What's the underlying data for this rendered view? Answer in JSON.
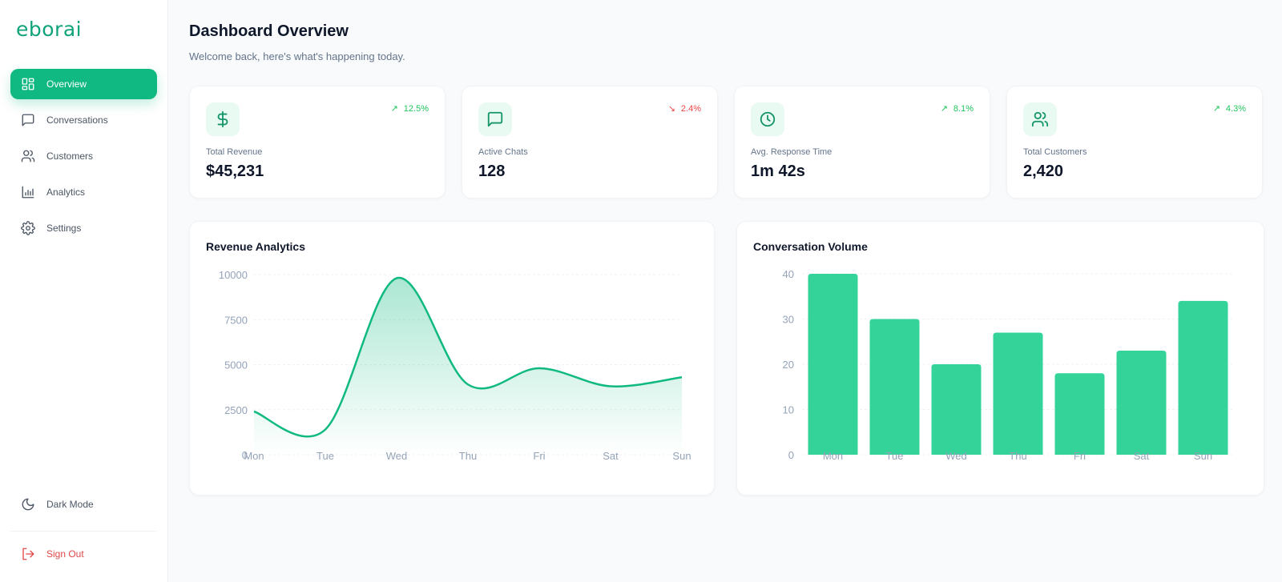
{
  "sidebar": {
    "logo": "eborai",
    "items": [
      {
        "label": "Overview",
        "icon": "grid-icon",
        "active": true
      },
      {
        "label": "Conversations",
        "icon": "message-square-icon",
        "active": false
      },
      {
        "label": "Customers",
        "icon": "users-icon",
        "active": false
      },
      {
        "label": "Analytics",
        "icon": "bar-chart-icon",
        "active": false
      },
      {
        "label": "Settings",
        "icon": "gear-icon",
        "active": false
      }
    ],
    "dark_mode": {
      "label": "Dark Mode",
      "icon": "moon-icon"
    },
    "sign_out": {
      "label": "Sign Out",
      "icon": "log-out-icon"
    }
  },
  "header": {
    "title": "Dashboard Overview",
    "subtitle": "Welcome back, here's what's happening today."
  },
  "stats": [
    {
      "label": "Total Revenue",
      "value": "$45,231",
      "change": "12.5%",
      "direction": "up",
      "arrow": "↗",
      "icon": "dollar-icon"
    },
    {
      "label": "Active Chats",
      "value": "128",
      "change": "2.4%",
      "direction": "down",
      "arrow": "↘",
      "icon": "message-square-icon"
    },
    {
      "label": "Avg. Response Time",
      "value": "1m 42s",
      "change": "8.1%",
      "direction": "up",
      "arrow": "↗",
      "icon": "clock-icon"
    },
    {
      "label": "Total Customers",
      "value": "2,420",
      "change": "4.3%",
      "direction": "up",
      "arrow": "↗",
      "icon": "users-icon"
    }
  ],
  "colors": {
    "accent": "#10b981",
    "bar": "#34d399",
    "line": "#10b981",
    "up": "#22c55e",
    "down": "#ef4444",
    "sign_out": "#e04848"
  },
  "chart_data": [
    {
      "type": "area",
      "title": "Revenue Analytics",
      "categories": [
        "Mon",
        "Tue",
        "Wed",
        "Thu",
        "Fri",
        "Sat",
        "Sun"
      ],
      "values": [
        2400,
        1400,
        9800,
        3900,
        4800,
        3800,
        4300
      ],
      "xlabel": "",
      "ylabel": "",
      "yticks": [
        0,
        2500,
        5000,
        7500,
        10000
      ],
      "ylim": [
        0,
        10000
      ],
      "grid": true,
      "legend": "none"
    },
    {
      "type": "bar",
      "title": "Conversation Volume",
      "categories": [
        "Mon",
        "Tue",
        "Wed",
        "Thu",
        "Fri",
        "Sat",
        "Sun"
      ],
      "values": [
        40,
        30,
        20,
        27,
        18,
        23,
        34
      ],
      "xlabel": "",
      "ylabel": "",
      "yticks": [
        0,
        10,
        20,
        30,
        40
      ],
      "ylim": [
        0,
        40
      ],
      "grid": true,
      "legend": "none"
    }
  ]
}
